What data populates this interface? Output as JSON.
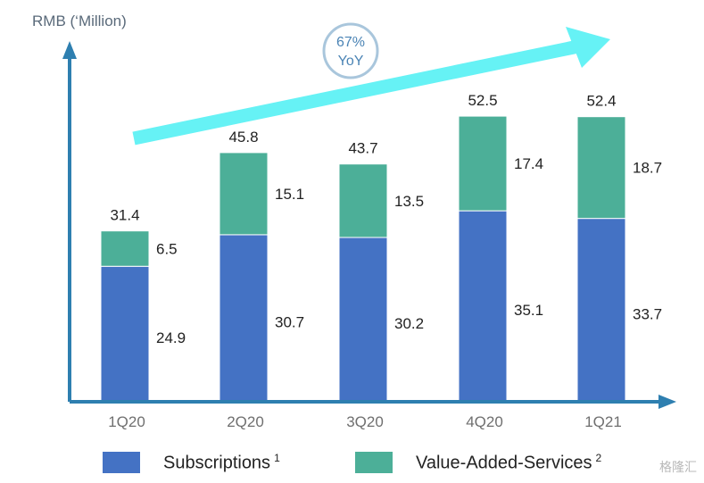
{
  "chart_data": {
    "type": "bar",
    "stacked": true,
    "ylabel": "RMB (‘Million)",
    "categories": [
      "1Q20",
      "2Q20",
      "3Q20",
      "4Q20",
      "1Q21"
    ],
    "totals": [
      31.4,
      45.8,
      43.7,
      52.5,
      52.4
    ],
    "series": [
      {
        "name": "Subscriptions",
        "superscript": "1",
        "color": "#4472c4",
        "values": [
          24.9,
          30.7,
          30.2,
          35.1,
          33.7
        ]
      },
      {
        "name": "Value-Added-Services",
        "superscript": "2",
        "color": "#4caf98",
        "values": [
          6.5,
          15.1,
          13.5,
          17.4,
          18.7
        ]
      }
    ],
    "annotation": {
      "line1": "67%",
      "line2": "YoY"
    },
    "ylim": [
      0,
      64
    ],
    "grid": false,
    "legend_position": "bottom",
    "colors": {
      "axis": "#2e7fb0",
      "trend_arrow": "#66f2f5",
      "badge_border": "#a9c6dc",
      "badge_text": "#4b84b5"
    }
  },
  "watermark": "格隆汇"
}
